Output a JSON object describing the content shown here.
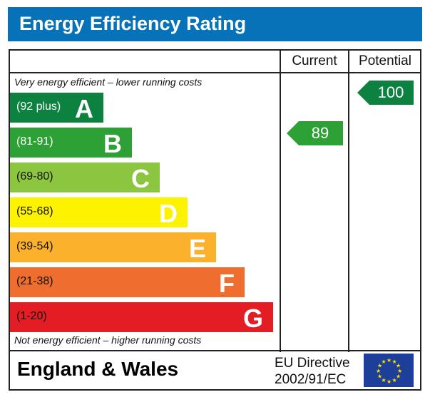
{
  "title": "Energy Efficiency Rating",
  "columns": {
    "current": "Current",
    "potential": "Potential"
  },
  "top_note": "Very energy efficient – lower running costs",
  "bottom_note": "Not energy efficient – higher running costs",
  "footer": {
    "region": "England & Wales",
    "directive_line1": "EU Directive",
    "directive_line2": "2002/91/EC",
    "flag_icon": "eu-flag-icon"
  },
  "chart_data": {
    "type": "bar",
    "bands": [
      {
        "letter": "A",
        "range": "(92 plus)",
        "color": "#0d8140",
        "range_color": "#ffffff"
      },
      {
        "letter": "B",
        "range": "(81-91)",
        "color": "#2da136",
        "range_color": "#ffffff"
      },
      {
        "letter": "C",
        "range": "(69-80)",
        "color": "#8cc540",
        "range_color": "#111111"
      },
      {
        "letter": "D",
        "range": "(55-68)",
        "color": "#fdf200",
        "range_color": "#111111"
      },
      {
        "letter": "E",
        "range": "(39-54)",
        "color": "#fbb12c",
        "range_color": "#111111"
      },
      {
        "letter": "F",
        "range": "(21-38)",
        "color": "#ef6d2f",
        "range_color": "#111111"
      },
      {
        "letter": "G",
        "range": "(1-20)",
        "color": "#e31d23",
        "range_color": "#111111"
      }
    ],
    "current": {
      "value": "89",
      "band": "B",
      "color": "#2da136"
    },
    "potential": {
      "value": "100",
      "band": "A",
      "color": "#0d8140"
    }
  }
}
